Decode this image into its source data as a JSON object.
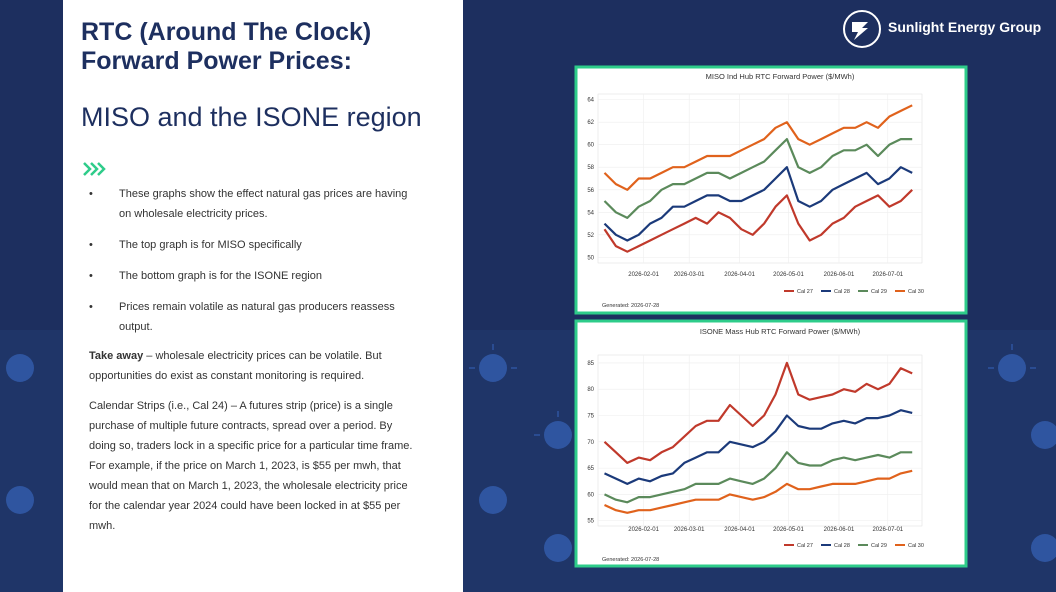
{
  "title_lines": [
    "RTC (Around The Clock)",
    "Forward Power Prices:"
  ],
  "subtitle": "MISO and the ISONE region",
  "bullets": [
    "These graphs show the effect natural gas prices are having on wholesale electricity prices.",
    "The top graph is for MISO specifically",
    "The bottom graph is for the ISONE region",
    "Prices remain volatile as natural gas producers reassess output."
  ],
  "paragraphs": [
    {
      "bold": "Take away",
      "text": " – wholesale electricity prices can be volatile. But opportunities do exist as constant monitoring is required."
    },
    {
      "text": "Calendar Strips (i.e., Cal 24) – A futures strip (price) is a single purchase of multiple future contracts, spread over a period. By doing so, traders lock in a specific price for a particular time frame.  For example, if the price on March 1, 2023, is $55 per mwh, that would mean that on March 1, 2023, the wholesale electricity price for the calendar year 2024 could have been locked in at $55 per mwh."
    }
  ],
  "logo": "Sunlight Energy Group",
  "chart_data": [
    {
      "type": "line",
      "title": "MISO Ind Hub RTC Forward Power ($/MWh)",
      "footnote": "Generated: 2026-07-28",
      "grid": true,
      "x": [
        "2026-01-08",
        "2026-01-15",
        "2026-01-22",
        "2026-01-29",
        "2026-02-05",
        "2026-02-12",
        "2026-02-19",
        "2026-02-26",
        "2026-03-05",
        "2026-03-12",
        "2026-03-19",
        "2026-03-26",
        "2026-04-02",
        "2026-04-09",
        "2026-04-16",
        "2026-04-23",
        "2026-04-30",
        "2026-05-07",
        "2026-05-14",
        "2026-05-21",
        "2026-05-28",
        "2026-06-04",
        "2026-06-11",
        "2026-06-18",
        "2026-06-25",
        "2026-07-02",
        "2026-07-09",
        "2026-07-16"
      ],
      "xlim": [
        "2026-01-04",
        "2026-07-22"
      ],
      "xticks": [
        "2026-02-01",
        "2026-03-01",
        "2026-04-01",
        "2026-05-01",
        "2026-06-01",
        "2026-07-01"
      ],
      "ylim": [
        49.5,
        64.5
      ],
      "yticks": [
        50,
        52,
        54,
        56,
        58,
        60,
        62,
        64
      ],
      "series": [
        {
          "name": "Cal 27",
          "color": "#c0392b",
          "values": [
            52.5,
            51,
            50.5,
            51,
            51.5,
            52,
            52.5,
            53,
            53.5,
            53,
            54,
            53.5,
            52.5,
            52,
            53,
            54.5,
            55.5,
            53,
            51.5,
            52,
            53,
            53.5,
            54.5,
            55,
            55.5,
            54.5,
            55,
            56
          ]
        },
        {
          "name": "Cal 28",
          "color": "#1b3a7a",
          "values": [
            53,
            52,
            51.5,
            52,
            53,
            53.5,
            54.5,
            54.5,
            55,
            55.5,
            55.5,
            55,
            55,
            55.5,
            56,
            57,
            58,
            55,
            54.5,
            55,
            56,
            56.5,
            57,
            57.5,
            56.5,
            57,
            58,
            57.5
          ]
        },
        {
          "name": "Cal 29",
          "color": "#5b8a5b",
          "values": [
            55,
            54,
            53.5,
            54.5,
            55,
            56,
            56.5,
            56.5,
            57,
            57.5,
            57.5,
            57,
            57.5,
            58,
            58.5,
            59.5,
            60.5,
            58,
            57.5,
            58,
            59,
            59.5,
            59.5,
            60,
            59,
            60,
            60.5,
            60.5
          ]
        },
        {
          "name": "Cal 30",
          "color": "#e0621c",
          "values": [
            57.5,
            56.5,
            56,
            57,
            57,
            57.5,
            58,
            58,
            58.5,
            59,
            59,
            59,
            59.5,
            60,
            60.5,
            61.5,
            62,
            60.5,
            60,
            60.5,
            61,
            61.5,
            61.5,
            62,
            61.5,
            62.5,
            63,
            63.5
          ]
        }
      ]
    },
    {
      "type": "line",
      "title": "ISONE Mass Hub RTC Forward Power ($/MWh)",
      "footnote": "Generated: 2026-07-28",
      "grid": true,
      "x": [
        "2026-01-08",
        "2026-01-15",
        "2026-01-22",
        "2026-01-29",
        "2026-02-05",
        "2026-02-12",
        "2026-02-19",
        "2026-02-26",
        "2026-03-05",
        "2026-03-12",
        "2026-03-19",
        "2026-03-26",
        "2026-04-02",
        "2026-04-09",
        "2026-04-16",
        "2026-04-23",
        "2026-04-30",
        "2026-05-07",
        "2026-05-14",
        "2026-05-21",
        "2026-05-28",
        "2026-06-04",
        "2026-06-11",
        "2026-06-18",
        "2026-06-25",
        "2026-07-02",
        "2026-07-09",
        "2026-07-16"
      ],
      "xlim": [
        "2026-01-04",
        "2026-07-22"
      ],
      "xticks": [
        "2026-02-01",
        "2026-03-01",
        "2026-04-01",
        "2026-05-01",
        "2026-06-01",
        "2026-07-01"
      ],
      "ylim": [
        54,
        86.5
      ],
      "yticks": [
        55,
        60,
        65,
        70,
        75,
        80,
        85
      ],
      "series": [
        {
          "name": "Cal 27",
          "color": "#c0392b",
          "values": [
            70,
            68,
            66,
            67,
            66.5,
            68,
            69,
            71,
            73,
            74,
            74,
            77,
            75,
            73,
            75,
            79,
            85,
            79,
            78,
            78.5,
            79,
            80,
            79.5,
            81,
            80,
            81,
            84,
            83
          ]
        },
        {
          "name": "Cal 28",
          "color": "#1b3a7a",
          "values": [
            64,
            63,
            62,
            63,
            62.5,
            63.5,
            64,
            66,
            67,
            68,
            68,
            70,
            69.5,
            69,
            70,
            72,
            75,
            73,
            72.5,
            72.5,
            73.5,
            74,
            73.5,
            74.5,
            74.5,
            75,
            76,
            75.5
          ]
        },
        {
          "name": "Cal 29",
          "color": "#5b8a5b",
          "values": [
            60,
            59,
            58.5,
            59.5,
            59.5,
            60,
            60.5,
            61,
            62,
            62,
            62,
            63,
            62.5,
            62,
            63,
            65,
            68,
            66,
            65.5,
            65.5,
            66.5,
            67,
            66.5,
            67,
            67.5,
            67,
            68,
            68
          ]
        },
        {
          "name": "Cal 30",
          "color": "#e0621c",
          "values": [
            58,
            57,
            56.5,
            57,
            57,
            57.5,
            58,
            58.5,
            59,
            59,
            59,
            60,
            59.5,
            59,
            59.5,
            60.5,
            62,
            61,
            61,
            61.5,
            62,
            62,
            62,
            62.5,
            63,
            63,
            64,
            64.5
          ]
        }
      ]
    }
  ]
}
